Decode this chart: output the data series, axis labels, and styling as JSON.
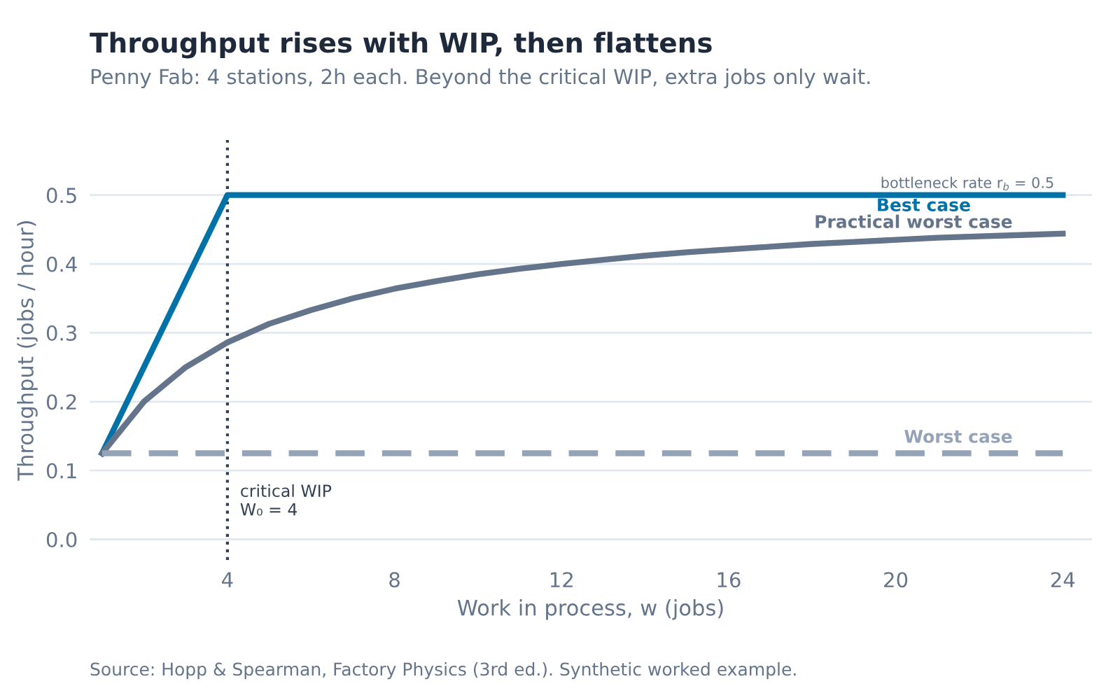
{
  "chart_data": {
    "type": "line",
    "title": "Throughput rises with WIP, then flattens",
    "subtitle": "Penny Fab: 4 stations, 2h each. Beyond the critical WIP, extra jobs only wait.",
    "xlabel": "Work in process, w (jobs)",
    "ylabel": "Throughput (jobs / hour)",
    "series": [
      {
        "name": "Best case",
        "color": "#0072a8",
        "x": [
          1,
          4,
          24
        ],
        "values": [
          0.125,
          0.5,
          0.5
        ]
      },
      {
        "name": "Practical worst case",
        "color": "#64748b",
        "x": [
          1,
          2,
          3,
          4,
          5,
          6,
          7,
          8,
          9,
          10,
          11,
          12,
          13,
          14,
          15,
          16,
          17,
          18,
          19,
          20,
          21,
          22,
          23,
          24
        ],
        "values": [
          0.125,
          0.2,
          0.25,
          0.286,
          0.313,
          0.333,
          0.35,
          0.364,
          0.375,
          0.385,
          0.393,
          0.4,
          0.406,
          0.412,
          0.417,
          0.421,
          0.425,
          0.429,
          0.432,
          0.435,
          0.438,
          0.44,
          0.442,
          0.444
        ]
      },
      {
        "name": "Worst case",
        "color": "#94a3b8",
        "line_style": "dashed",
        "x": [
          1,
          24
        ],
        "values": [
          0.125,
          0.125
        ]
      }
    ],
    "ref_lines": [
      {
        "axis": "x",
        "value": 4,
        "label": "critical WIP\nW₀ = 4",
        "color": "#334155",
        "line_style": "dotted"
      }
    ],
    "annotations": [
      {
        "text": "bottleneck rate r$_{b}$ = 0.5",
        "x": 24,
        "y": 0.5
      },
      "Source: Hopp & Spearman, Factory Physics (3rd ed.). Synthetic worked example."
    ],
    "xlim": [
      0.7,
      24.7
    ],
    "ylim": [
      -0.03,
      0.58
    ],
    "xticks": [
      4,
      8,
      12,
      16,
      20,
      24
    ],
    "yticks": [
      {
        "value": 0,
        "label": "0.0"
      },
      0.1,
      0.2,
      0.3,
      0.4,
      0.5
    ],
    "grid": "y",
    "legend": false,
    "marker": "none"
  }
}
